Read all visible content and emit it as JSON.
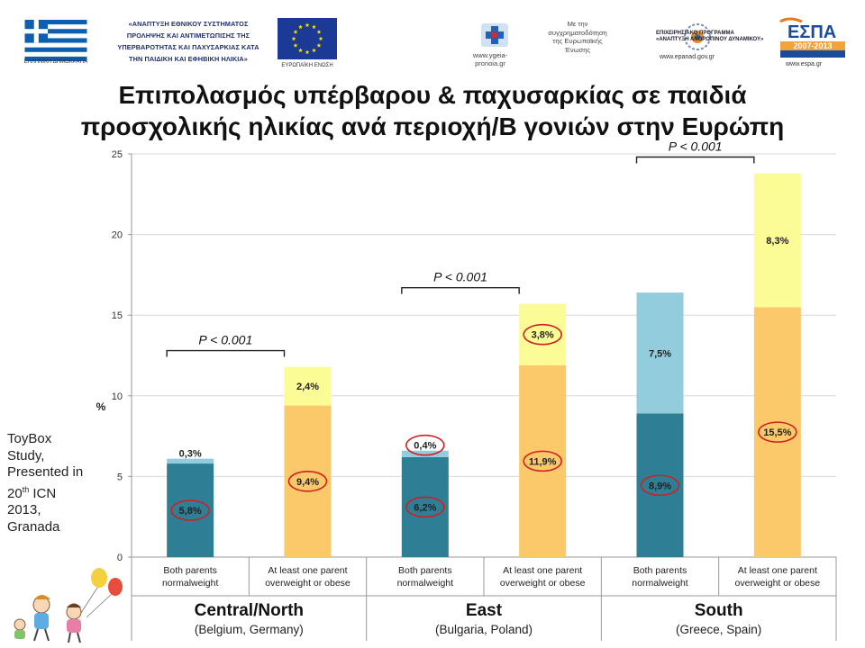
{
  "header": {
    "flag_caption": "ΕΛΛΗΝΙΚΗ ΔΗΜΟΚΡΑΤΙΑ",
    "program_lines": [
      "«ΑΝΑΠΤΥΞΗ ΕΘΝΙΚΟΥ ΣΥΣΤΗΜΑΤΟΣ",
      "ΠΡΟΛΗΨΗΣ ΚΑΙ ΑΝΤΙΜΕΤΩΠΙΣΗΣ ΤΗΣ",
      "ΥΠΕΡΒΑΡΟΤΗΤΑΣ ΚΑΙ ΠΑΧΥΣΑΡΚΙΑΣ ΚΑΤΑ",
      "ΤΗΝ ΠΑΙΔΙΚΗ ΚΑΙ ΕΦΗΒΙΚΗ ΗΛΙΚΙΑ»"
    ],
    "eu_caption": "ΕΥΡΩΠΑΪΚΗ ΕΝΩΣΗ",
    "ministry_url_lines": [
      "www.ygeia-",
      "pronoia.gr"
    ],
    "cofinance_lines": [
      "Με την",
      "συγχρηματοδότηση",
      "της Ευρωπαϊκής",
      "Ένωσης"
    ],
    "epanad_lines": [
      "ΕΠΙΧΕΙΡΗΣΙΑΚΟ ΠΡΟΓΡΑΜΜΑ",
      "«ΑΝΑΠΤΥΞΗ ΑΝΘΡΩΠΙΝΟΥ ΔΥΝΑΜΙΚΟΥ»"
    ],
    "epanad_url": "www.epanad.gov.gr",
    "espa_text": "ΕΣΠΑ",
    "espa_years": "2007-2013",
    "espa_url": "www.espa.gr"
  },
  "title_lines": [
    "Επιπολασμός υπέρβαρου & παχυσαρκίας σε παιδιά",
    "προσχολικής ηλικίας ανά περιοχή/Β γονιών στην Ευρώπη"
  ],
  "side_note": {
    "lines_before_sup": [
      "ToyBox",
      "Study,",
      "Presented in"
    ],
    "ordinal_number": "20",
    "ordinal_suffix": "th",
    "ordinal_rest": " ICN",
    "lines_after": [
      "2013,",
      "Granada"
    ]
  },
  "colors": {
    "normal_dark": "#2e7f96",
    "normal_light": "#93cddd",
    "parent_dark": "#fcc96a",
    "parent_light": "#fcfc96",
    "circle": "#d01f1f",
    "axis": "#999999",
    "grid": "#d9d9d9"
  },
  "chart_data": {
    "type": "bar",
    "stacked": true,
    "ylabel": "%",
    "ylim": [
      0,
      25
    ],
    "yticks": [
      0,
      5,
      10,
      15,
      20,
      25
    ],
    "grid": true,
    "regions": [
      {
        "name": "Central/North",
        "countries": "(Belgium, Germany)",
        "pvalue": "P < 0.001",
        "bars": [
          {
            "category": "Both parents normalweight",
            "category_lines": [
              "Both parents",
              "normalweight"
            ],
            "group": "normal",
            "segments": [
              {
                "value": 5.8,
                "label": "5,8%",
                "circled": true
              },
              {
                "value": 0.3,
                "label": "0,3%",
                "circled": false
              }
            ]
          },
          {
            "category": "At least one parent overweight or obese",
            "category_lines": [
              "At least one parent",
              "overweight or obese"
            ],
            "group": "parent",
            "segments": [
              {
                "value": 9.4,
                "label": "9,4%",
                "circled": true
              },
              {
                "value": 2.4,
                "label": "2,4%",
                "circled": false
              }
            ]
          }
        ]
      },
      {
        "name": "East",
        "countries": "(Bulgaria, Poland)",
        "pvalue": "P < 0.001",
        "bars": [
          {
            "category": "Both parents normalweight",
            "category_lines": [
              "Both parents",
              "normalweight"
            ],
            "group": "normal",
            "segments": [
              {
                "value": 6.2,
                "label": "6,2%",
                "circled": true
              },
              {
                "value": 0.4,
                "label": "0,4%",
                "circled": true
              }
            ]
          },
          {
            "category": "At least one parent overweight or obese",
            "category_lines": [
              "At least one parent",
              "overweight or obese"
            ],
            "group": "parent",
            "segments": [
              {
                "value": 11.9,
                "label": "11,9%",
                "circled": true
              },
              {
                "value": 3.8,
                "label": "3,8%",
                "circled": true
              }
            ]
          }
        ]
      },
      {
        "name": "South",
        "countries": "(Greece, Spain)",
        "pvalue": "P < 0.001",
        "bars": [
          {
            "category": "Both parents normalweight",
            "category_lines": [
              "Both parents",
              "normalweight"
            ],
            "group": "normal",
            "segments": [
              {
                "value": 8.9,
                "label": "8,9%",
                "circled": true
              },
              {
                "value": 7.5,
                "label": "7,5%",
                "circled": false
              }
            ]
          },
          {
            "category": "At least one parent overweight or obese",
            "category_lines": [
              "At least one parent",
              "overweight or obese"
            ],
            "group": "parent",
            "segments": [
              {
                "value": 15.5,
                "label": "15,5%",
                "circled": true
              },
              {
                "value": 8.3,
                "label": "8,3%",
                "circled": false
              }
            ]
          }
        ]
      }
    ]
  }
}
